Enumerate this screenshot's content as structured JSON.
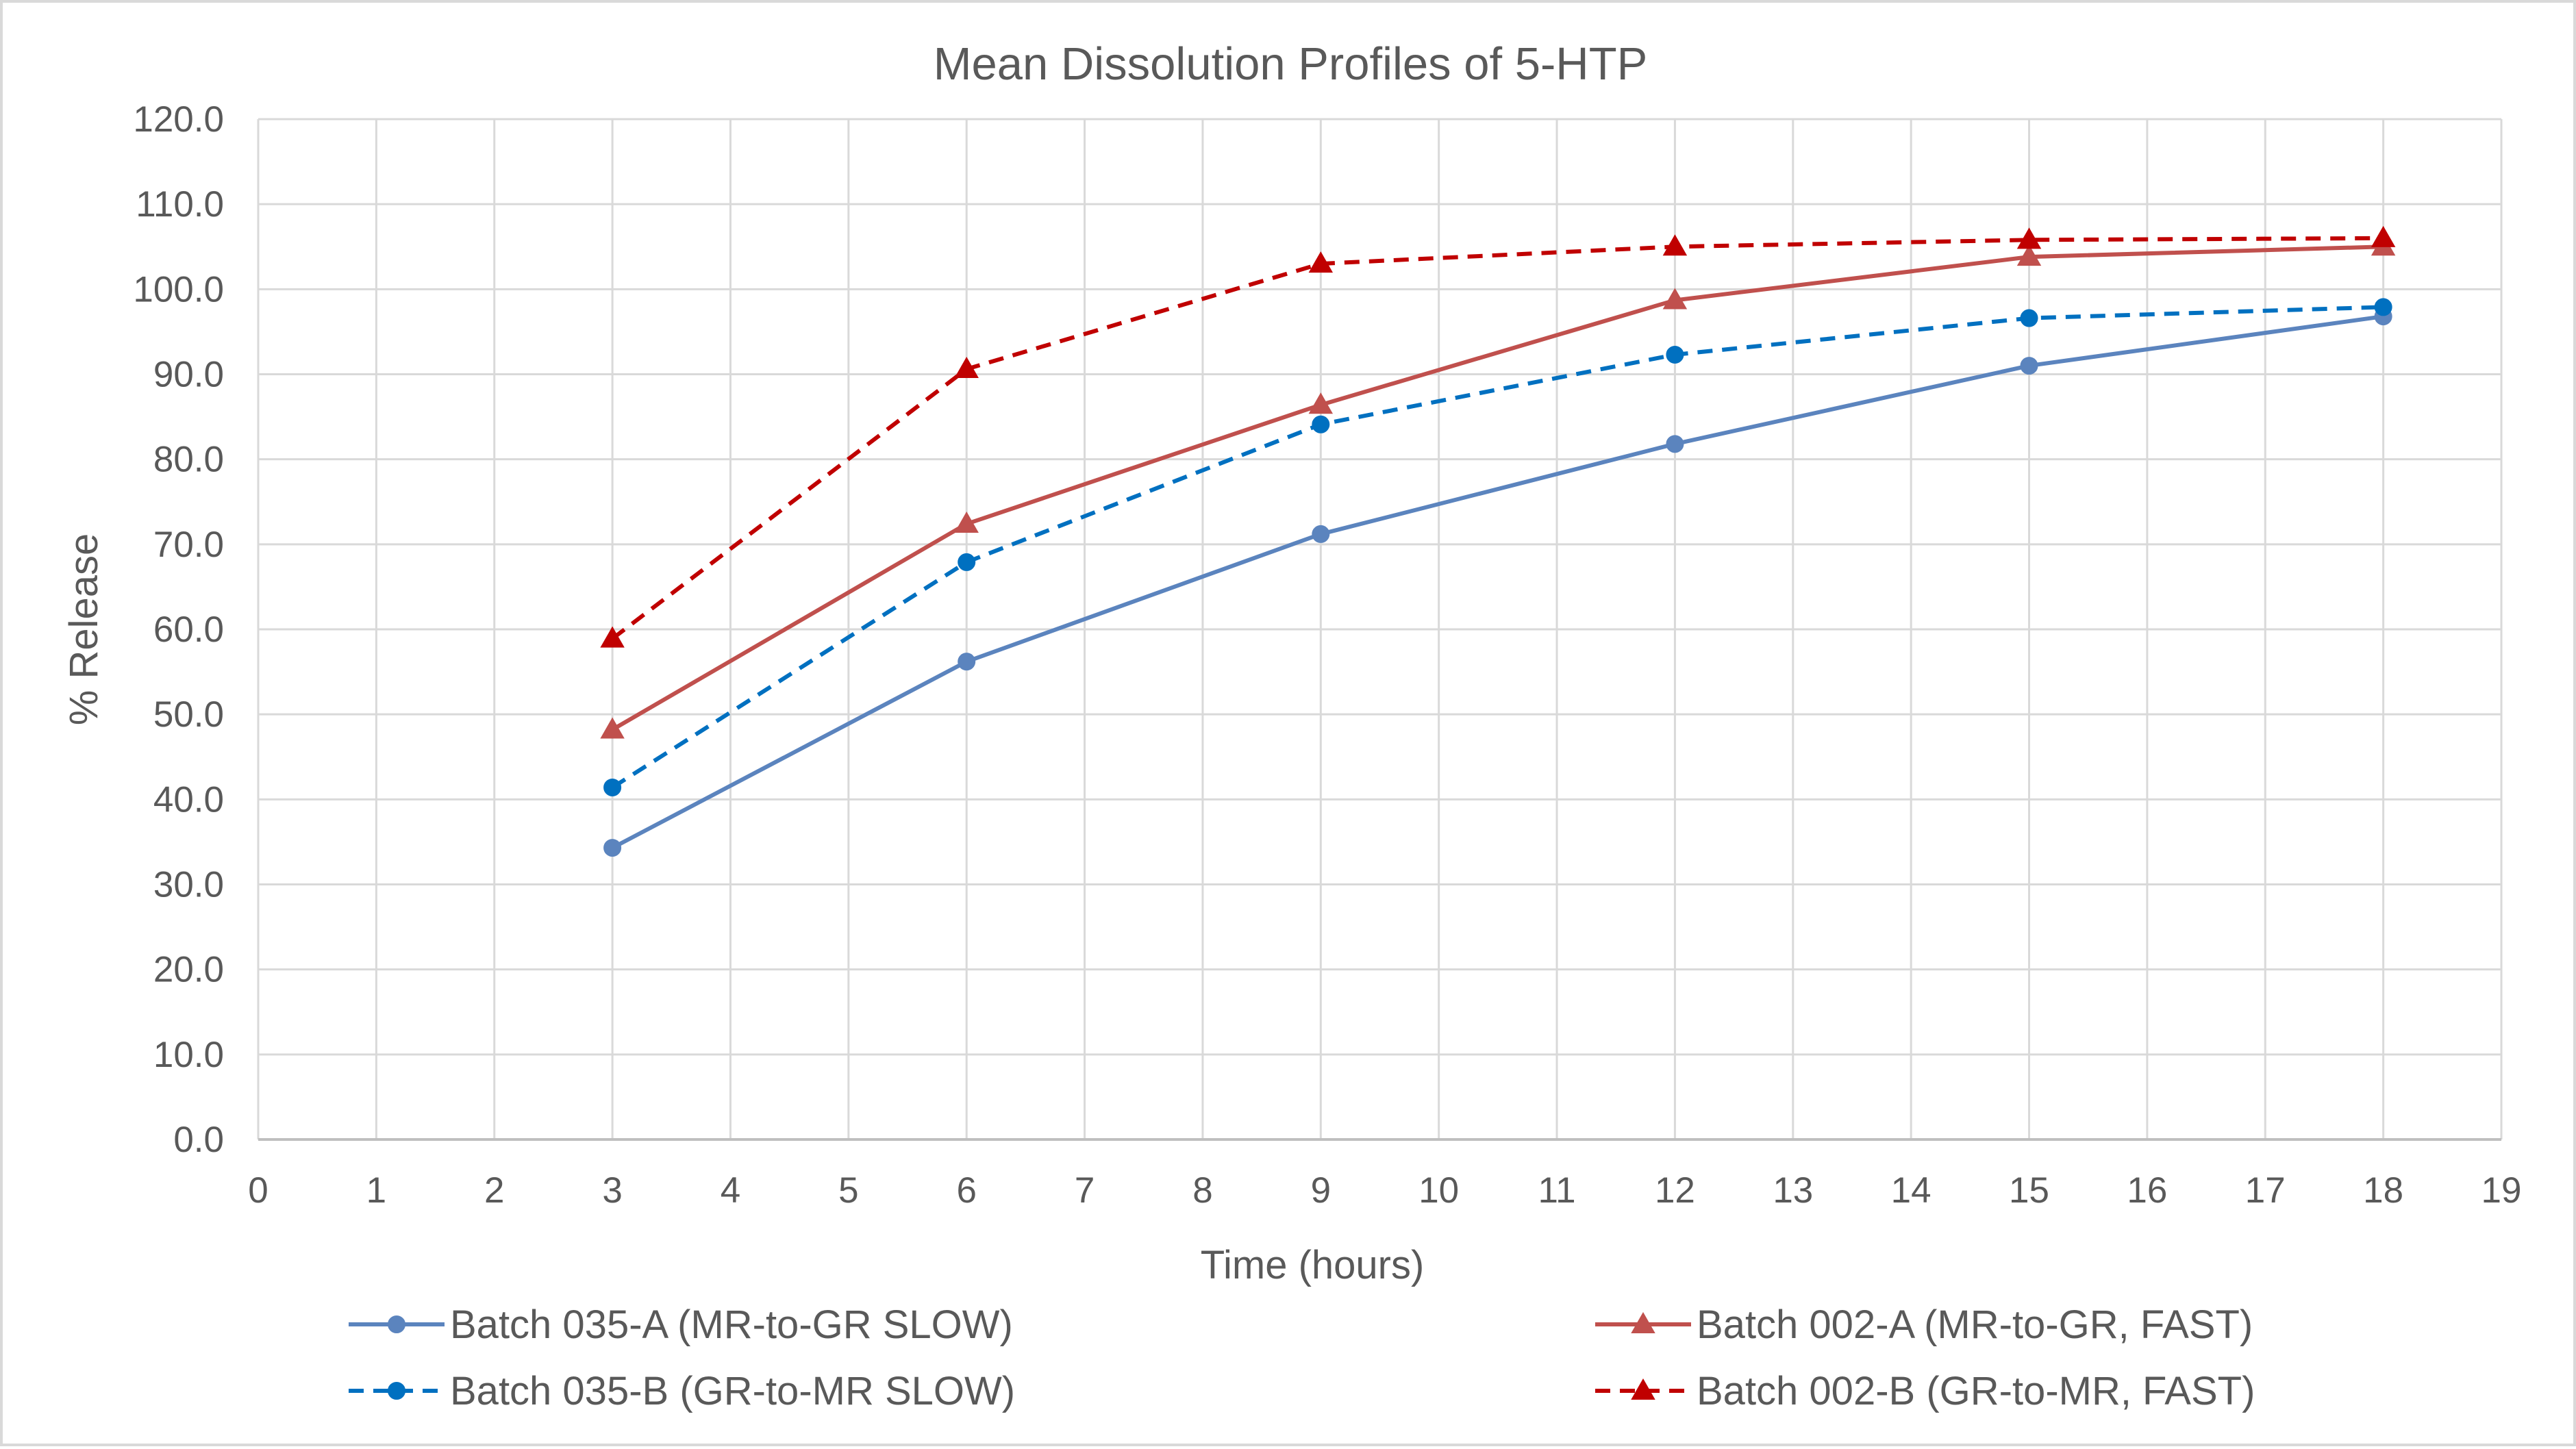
{
  "chart_data": {
    "type": "line",
    "title": "Mean Dissolution Profiles of 5-HTP",
    "xlabel": "Time (hours)",
    "ylabel": "% Release",
    "xlim": [
      0,
      19
    ],
    "ylim": [
      0,
      120
    ],
    "x_ticks": [
      "0",
      "1",
      "2",
      "3",
      "4",
      "5",
      "6",
      "7",
      "8",
      "9",
      "10",
      "11",
      "12",
      "13",
      "14",
      "15",
      "16",
      "17",
      "18",
      "19"
    ],
    "y_ticks": [
      "0.0",
      "10.0",
      "20.0",
      "30.0",
      "40.0",
      "50.0",
      "60.0",
      "70.0",
      "80.0",
      "90.0",
      "100.0",
      "110.0",
      "120.0"
    ],
    "grid": true,
    "legend_position": "bottom",
    "x": [
      3,
      6,
      9,
      12,
      15,
      18
    ],
    "series": [
      {
        "name": "Batch 035-A (MR-to-GR SLOW)",
        "values": [
          34.3,
          56.2,
          71.2,
          81.8,
          91.0,
          96.8
        ],
        "color": "#5b84be",
        "dash": "solid",
        "marker": "circle"
      },
      {
        "name": "Batch 002-A (MR-to-GR, FAST)",
        "values": [
          48.2,
          72.4,
          86.4,
          98.7,
          103.8,
          105.0
        ],
        "color": "#c0504d",
        "dash": "solid",
        "marker": "triangle"
      },
      {
        "name": "Batch 035-B (GR-to-MR SLOW)",
        "values": [
          41.4,
          67.9,
          84.1,
          92.3,
          96.6,
          97.9
        ],
        "color": "#0070c0",
        "dash": "dashed",
        "marker": "circle"
      },
      {
        "name": "Batch 002-B (GR-to-MR, FAST)",
        "values": [
          58.9,
          90.6,
          103.0,
          105.0,
          105.8,
          106.0
        ],
        "color": "#c00000",
        "dash": "dashed",
        "marker": "triangle"
      }
    ]
  }
}
